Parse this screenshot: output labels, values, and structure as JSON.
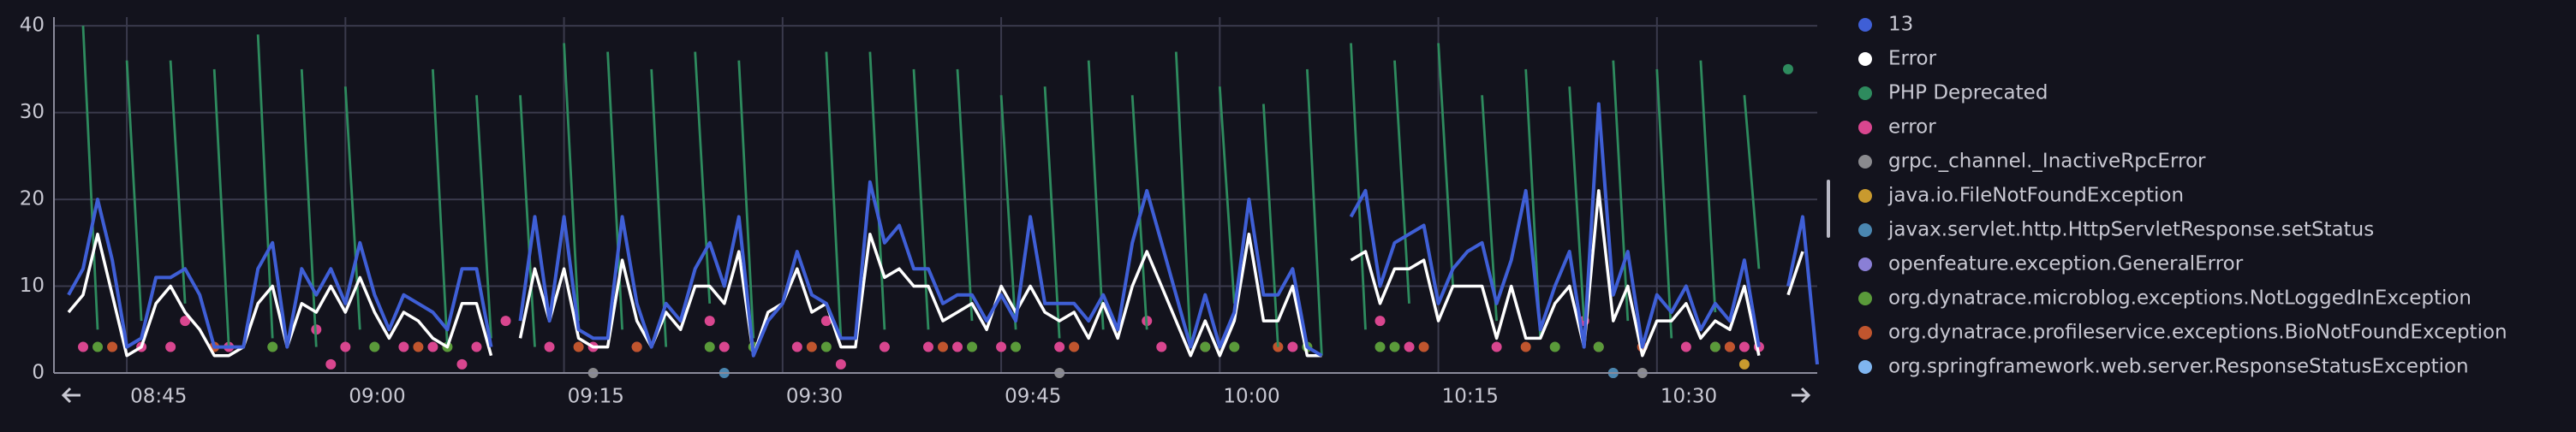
{
  "chart_data": {
    "type": "line",
    "x": [
      "08:41",
      "08:42",
      "08:43",
      "08:44",
      "08:45",
      "08:46",
      "08:47",
      "08:48",
      "08:49",
      "08:50",
      "08:51",
      "08:52",
      "08:53",
      "08:54",
      "08:55",
      "08:56",
      "08:57",
      "08:58",
      "08:59",
      "09:00",
      "09:01",
      "09:02",
      "09:03",
      "09:04",
      "09:05",
      "09:06",
      "09:07",
      "09:08",
      "09:09",
      "09:10",
      "09:11",
      "09:12",
      "09:13",
      "09:14",
      "09:15",
      "09:16",
      "09:17",
      "09:18",
      "09:19",
      "09:20",
      "09:21",
      "09:22",
      "09:23",
      "09:24",
      "09:25",
      "09:26",
      "09:27",
      "09:28",
      "09:29",
      "09:30",
      "09:31",
      "09:32",
      "09:33",
      "09:34",
      "09:35",
      "09:36",
      "09:37",
      "09:38",
      "09:39",
      "09:40",
      "09:41",
      "09:42",
      "09:43",
      "09:44",
      "09:45",
      "09:46",
      "09:47",
      "09:48",
      "09:49",
      "09:50",
      "09:51",
      "09:52",
      "09:53",
      "09:54",
      "09:55",
      "09:56",
      "09:57",
      "09:58",
      "09:59",
      "10:00",
      "10:01",
      "10:02",
      "10:03",
      "10:04",
      "10:05",
      "10:06",
      "10:07",
      "10:08",
      "10:09",
      "10:10",
      "10:11",
      "10:12",
      "10:13",
      "10:14",
      "10:15",
      "10:16",
      "10:17",
      "10:18",
      "10:19",
      "10:20",
      "10:21",
      "10:22",
      "10:23",
      "10:24",
      "10:25",
      "10:26",
      "10:27",
      "10:28",
      "10:29",
      "10:30",
      "10:31",
      "10:32",
      "10:33",
      "10:34",
      "10:35",
      "10:36",
      "10:37",
      "10:38",
      "10:39",
      "10:40",
      "10:41"
    ],
    "xlim": [
      "08:40",
      "10:41"
    ],
    "xticks": [
      "08:45",
      "09:00",
      "09:15",
      "09:30",
      "09:45",
      "10:00",
      "10:15",
      "10:30"
    ],
    "ylim": [
      0,
      41
    ],
    "yticks": [
      0,
      10,
      20,
      30,
      40
    ],
    "grid": true,
    "series": [
      {
        "name": "13",
        "color": "#3f5fd6",
        "mode": "lines",
        "values": [
          9,
          12,
          20,
          13,
          3,
          4,
          11,
          11,
          12,
          9,
          3,
          3,
          3,
          12,
          15,
          3,
          12,
          9,
          12,
          8,
          15,
          9,
          5,
          9,
          8,
          7,
          5,
          12,
          12,
          3,
          null,
          6,
          18,
          6,
          18,
          5,
          4,
          4,
          18,
          8,
          3,
          8,
          6,
          12,
          15,
          10,
          18,
          2,
          6,
          8,
          14,
          9,
          8,
          4,
          4,
          22,
          15,
          17,
          12,
          12,
          8,
          9,
          9,
          6,
          9,
          6,
          18,
          8,
          8,
          8,
          6,
          9,
          5,
          15,
          21,
          15,
          9,
          3,
          9,
          3,
          7,
          20,
          9,
          9,
          12,
          3,
          2,
          null,
          18,
          21,
          10,
          15,
          16,
          17,
          8,
          12,
          14,
          15,
          8,
          13,
          21,
          5,
          10,
          14,
          3,
          31,
          9,
          14,
          3,
          9,
          7,
          10,
          5,
          8,
          6,
          13,
          3,
          null,
          10,
          18,
          1
        ]
      },
      {
        "name": "Error",
        "color": "#ffffff",
        "mode": "lines",
        "values": [
          7,
          9,
          16,
          9,
          2,
          3,
          8,
          10,
          7,
          5,
          2,
          2,
          3,
          8,
          10,
          3,
          8,
          7,
          10,
          7,
          11,
          7,
          4,
          7,
          6,
          4,
          3,
          8,
          8,
          2,
          null,
          4,
          12,
          6,
          12,
          4,
          3,
          3,
          13,
          6,
          3,
          7,
          5,
          10,
          10,
          8,
          14,
          2,
          7,
          8,
          12,
          7,
          8,
          3,
          3,
          16,
          11,
          12,
          10,
          10,
          6,
          7,
          8,
          5,
          10,
          7,
          10,
          7,
          6,
          7,
          4,
          8,
          4,
          10,
          14,
          10,
          6,
          2,
          6,
          2,
          6,
          16,
          6,
          6,
          10,
          2,
          2,
          null,
          13,
          14,
          8,
          12,
          12,
          13,
          6,
          10,
          10,
          10,
          4,
          10,
          4,
          4,
          8,
          10,
          3,
          21,
          6,
          10,
          2,
          6,
          6,
          8,
          4,
          6,
          5,
          10,
          2,
          null,
          9,
          14,
          null
        ]
      },
      {
        "name": "PHP Deprecated",
        "color": "#2e8b5e",
        "mode": "lines",
        "values": [
          null,
          40,
          5,
          null,
          36,
          6,
          null,
          36,
          8,
          null,
          35,
          3,
          null,
          39,
          4,
          null,
          35,
          3,
          null,
          33,
          5,
          null,
          null,
          null,
          null,
          35,
          3,
          null,
          32,
          4,
          null,
          32,
          3,
          null,
          38,
          6,
          null,
          37,
          5,
          null,
          35,
          3,
          null,
          37,
          8,
          null,
          36,
          4,
          null,
          null,
          null,
          null,
          37,
          4,
          null,
          37,
          5,
          null,
          35,
          5,
          null,
          35,
          6,
          null,
          32,
          5,
          null,
          33,
          4,
          null,
          36,
          5,
          null,
          32,
          5,
          null,
          37,
          3,
          null,
          33,
          8,
          null,
          31,
          3,
          null,
          35,
          2,
          null,
          38,
          5,
          null,
          36,
          8,
          null,
          38,
          10,
          null,
          32,
          6,
          null,
          35,
          4,
          null,
          33,
          6,
          null,
          36,
          6,
          null,
          35,
          4,
          null,
          36,
          7,
          null,
          32,
          12,
          null,
          35,
          null,
          null
        ]
      },
      {
        "name": "error",
        "color": "#d9468f",
        "mode": "markers",
        "x": [
          "08:42",
          "08:46",
          "08:48",
          "08:49",
          "08:52",
          "08:58",
          "08:59",
          "09:00",
          "09:04",
          "09:06",
          "09:08",
          "09:09",
          "09:11",
          "09:14",
          "09:17",
          "09:20",
          "09:25",
          "09:26",
          "09:31",
          "09:33",
          "09:34",
          "09:37",
          "09:40",
          "09:42",
          "09:45",
          "09:49",
          "09:55",
          "09:56",
          "09:59",
          "10:05",
          "10:11",
          "10:13",
          "10:19",
          "10:25",
          "10:26",
          "10:29",
          "10:32",
          "10:34",
          "10:35",
          "10:36",
          "10:37"
        ],
        "values": [
          3,
          3,
          3,
          6,
          3,
          5,
          1,
          3,
          3,
          3,
          1,
          3,
          6,
          3,
          3,
          3,
          6,
          3,
          3,
          6,
          1,
          3,
          3,
          3,
          3,
          3,
          6,
          3,
          3,
          3,
          6,
          3,
          3,
          6,
          3,
          3,
          3,
          3,
          3,
          3,
          3
        ]
      },
      {
        "name": "grpc._channel._InactiveRpcError",
        "color": "#8a8a8e",
        "mode": "markers",
        "x": [
          "09:17",
          "09:49",
          "10:27",
          "10:29"
        ],
        "values": [
          0,
          0,
          0,
          0
        ]
      },
      {
        "name": "java.io.FileNotFoundException",
        "color": "#c99a2e",
        "mode": "markers",
        "x": [
          "10:36"
        ],
        "values": [
          1
        ]
      },
      {
        "name": "javax.servlet.http.HttpServletResponse.setStatus",
        "color": "#4a86b0",
        "mode": "markers",
        "x": [
          "09:26",
          "10:27"
        ],
        "values": [
          0,
          0
        ]
      },
      {
        "name": "openfeature.exception.GeneralError",
        "color": "#8a7fd6",
        "mode": "markers",
        "x": [],
        "values": []
      },
      {
        "name": "org.dynatrace.microblog.exceptions.NotLoggedInException",
        "color": "#5a9a3a",
        "mode": "markers",
        "x": [
          "08:43",
          "08:55",
          "09:02",
          "09:07",
          "09:25",
          "09:28",
          "09:33",
          "09:43",
          "09:46",
          "09:59",
          "10:01",
          "10:06",
          "10:11",
          "10:12",
          "10:23",
          "10:26",
          "10:34"
        ],
        "values": [
          3,
          3,
          3,
          3,
          3,
          3,
          3,
          3,
          3,
          3,
          3,
          3,
          3,
          3,
          3,
          3,
          3
        ]
      },
      {
        "name": "org.dynatrace.profileservice.exceptions.BioNotFoundException",
        "color": "#c0552e",
        "mode": "markers",
        "x": [
          "08:44",
          "08:51",
          "09:05",
          "09:16",
          "09:20",
          "09:32",
          "09:41",
          "09:50",
          "10:04",
          "10:14",
          "10:21",
          "10:29",
          "10:35"
        ],
        "values": [
          3,
          3,
          3,
          3,
          3,
          3,
          3,
          3,
          3,
          3,
          3,
          3,
          3
        ]
      },
      {
        "name": "org.springframework.web.server.ResponseStatusException",
        "color": "#7fb5f0",
        "mode": "markers",
        "x": [],
        "values": []
      }
    ]
  }
}
